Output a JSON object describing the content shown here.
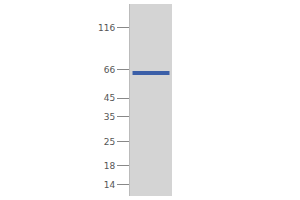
{
  "chart_data": {
    "type": "blot",
    "log": "y",
    "ylim": [
      12,
      160
    ],
    "yticks": [
      14,
      18,
      25,
      35,
      45,
      66,
      116
    ],
    "values": [
      63
    ],
    "color": "#3b5fa8",
    "tick_labels": "y"
  }
}
